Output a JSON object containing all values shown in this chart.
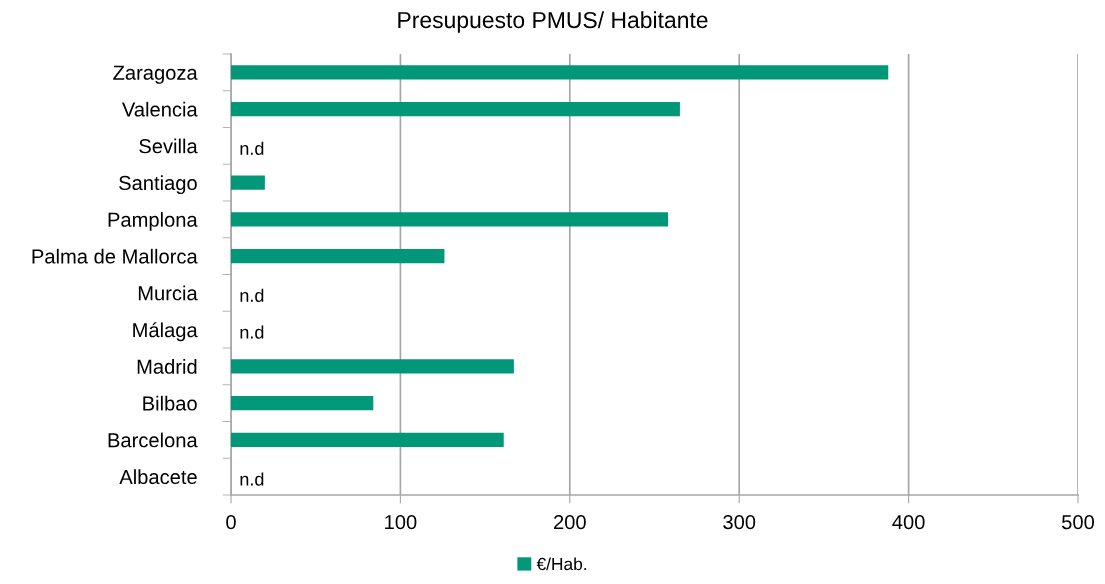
{
  "chart_data": {
    "type": "bar",
    "orientation": "horizontal",
    "title": "Presupuesto PMUS/ Habitante",
    "categories": [
      "Zaragoza",
      "Valencia",
      "Sevilla",
      "Santiago",
      "Pamplona",
      "Palma de Mallorca",
      "Murcia",
      "Málaga",
      "Madrid",
      "Bilbao",
      "Barcelona",
      "Albacete"
    ],
    "series": [
      {
        "name": "€/Hab.",
        "color": "#03977a",
        "values": [
          388,
          265,
          null,
          20,
          258,
          126,
          null,
          null,
          167,
          84,
          161,
          null
        ],
        "value_labels": [
          null,
          null,
          "n.d",
          null,
          null,
          null,
          "n.d",
          "n.d",
          null,
          null,
          null,
          "n.d"
        ]
      }
    ],
    "xlim": [
      0,
      500
    ],
    "xticks": [
      0,
      100,
      200,
      300,
      400,
      500
    ],
    "grid": "x",
    "legend": "bottom"
  }
}
